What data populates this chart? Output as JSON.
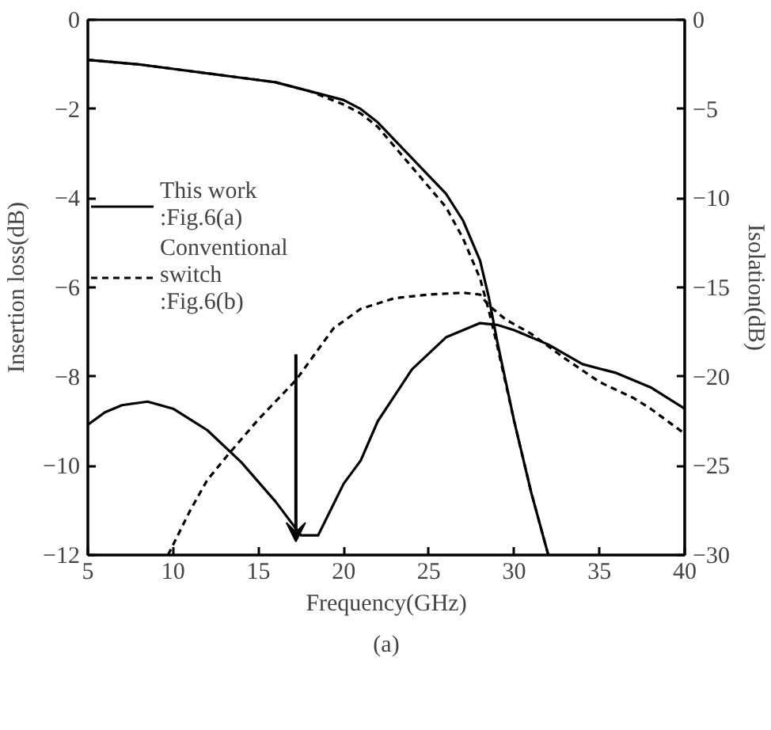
{
  "chart_data": {
    "type": "line",
    "xlabel": "Frequency(GHz)",
    "ylabel": "Insertion loss(dB)",
    "y2label": "Isolation(dB)",
    "annotations": [
      "(a)"
    ],
    "xlim": [
      5,
      40
    ],
    "xticks": [
      5,
      10,
      15,
      20,
      25,
      30,
      35,
      40
    ],
    "ylim": [
      -12,
      0
    ],
    "yticks": [
      -12,
      -10,
      -8,
      -6,
      -4,
      -2,
      0
    ],
    "y2lim": [
      -30,
      0
    ],
    "y2ticks": [
      -30,
      -25,
      -20,
      -15,
      -10,
      -5,
      0
    ],
    "grid": false,
    "legend": "top left",
    "series": [
      {
        "name": "This work\n:Fig.6(a)",
        "color": "#000000",
        "line_style": "solid",
        "x": [
          5,
          8,
          10,
          12,
          14,
          16,
          18,
          20,
          21,
          22,
          23,
          24,
          25,
          26,
          27,
          28,
          28.5,
          29,
          30,
          31,
          32
        ],
        "values": [
          -0.9,
          -1.0,
          -1.1,
          -1.2,
          -1.3,
          -1.4,
          -1.6,
          -1.8,
          -2.0,
          -2.3,
          -2.7,
          -3.1,
          -3.5,
          -3.9,
          -4.5,
          -5.4,
          -6.2,
          -7.2,
          -9.0,
          -10.6,
          -12
        ]
      },
      {
        "name": "Conventional\nswitch\n:Fig.6(b)",
        "color": "#000000",
        "line_style": "dashed",
        "x": [
          5,
          8,
          10,
          12,
          14,
          16,
          18,
          20,
          21,
          22,
          24,
          26,
          27,
          28,
          28.5,
          29,
          30,
          31,
          32
        ],
        "values": [
          -0.9,
          -1.0,
          -1.1,
          -1.2,
          -1.3,
          -1.4,
          -1.6,
          -1.9,
          -2.1,
          -2.4,
          -3.3,
          -4.2,
          -4.9,
          -5.8,
          -6.5,
          -7.3,
          -9.0,
          -10.6,
          -12
        ]
      },
      {
        "color": "#000000",
        "line_style": "solid",
        "axis": "y2",
        "x": [
          5,
          6,
          7,
          8.5,
          10,
          12,
          14,
          16,
          17.5,
          18.5,
          20,
          21,
          22,
          24,
          26,
          28,
          29,
          30,
          32,
          34,
          36,
          38,
          40
        ],
        "values": [
          -22.7,
          -22.0,
          -21.6,
          -21.4,
          -21.8,
          -23.0,
          -24.8,
          -27.0,
          -28.9,
          -28.9,
          -26.0,
          -24.7,
          -22.5,
          -19.6,
          -17.8,
          -17.0,
          -17.1,
          -17.4,
          -18.2,
          -19.3,
          -19.8,
          -20.6,
          -21.8
        ]
      },
      {
        "color": "#000000",
        "line_style": "dashed",
        "axis": "y2",
        "x": [
          9.7,
          11,
          12,
          13.2,
          15,
          17.2,
          19.4,
          21,
          23,
          25,
          27,
          28,
          28.5,
          29.5,
          31,
          33,
          35,
          37,
          38,
          40
        ],
        "values": [
          -30,
          -27.5,
          -25.8,
          -24.4,
          -22.4,
          -20.2,
          -17.3,
          -16.2,
          -15.6,
          -15.4,
          -15.3,
          -15.4,
          -16.0,
          -16.8,
          -17.6,
          -19.0,
          -20.3,
          -21.2,
          -21.8,
          -23.2
        ]
      }
    ]
  }
}
